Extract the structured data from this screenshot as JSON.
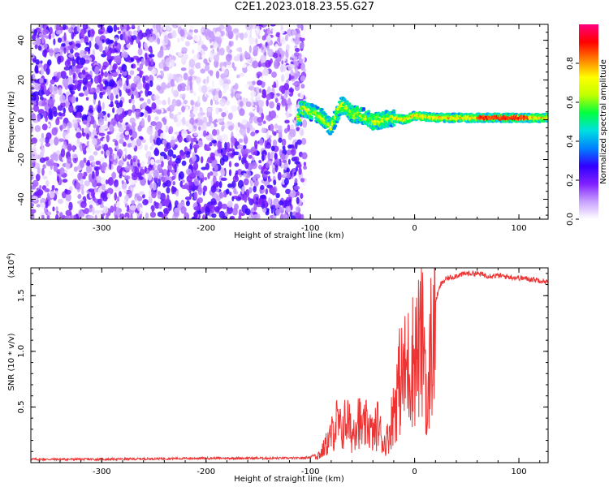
{
  "title": "C2E1.2023.018.23.55.G27",
  "chart_data": [
    {
      "type": "heatmap",
      "xlabel": "Height of straight line (km)",
      "ylabel": "Frequency (Hz)",
      "xlim": [
        -368,
        128
      ],
      "ylim": [
        -50,
        48
      ],
      "x_ticks": [
        -300,
        -200,
        -100,
        0,
        100
      ],
      "x_tick_labels": [
        "-300",
        "-200",
        "-100",
        "0",
        "100"
      ],
      "y_ticks": [
        -40,
        -20,
        0,
        20,
        40
      ],
      "y_tick_labels": [
        "-40",
        "-20",
        "0",
        "20",
        "40"
      ],
      "colorbar": {
        "label": "Normalized spectral amplitude",
        "range": [
          0,
          1
        ],
        "ticks": [
          0.0,
          0.2,
          0.4,
          0.6,
          0.8
        ],
        "tick_labels": [
          "0.0",
          "0.2",
          "0.4",
          "0.6",
          "0.8"
        ],
        "colors": [
          "#ffffff",
          "#c8a0ff",
          "#8020ff",
          "#3000ff",
          "#0080ff",
          "#00e0e0",
          "#00ff40",
          "#c0ff00",
          "#ffff00",
          "#ff8000",
          "#ff0000",
          "#ff0080"
        ]
      },
      "features": {
        "noise_region_x": [
          -368,
          -105
        ],
        "carrier_trace": [
          {
            "x": -110,
            "y": 6
          },
          {
            "x": -100,
            "y": 4
          },
          {
            "x": -90,
            "y": 2
          },
          {
            "x": -80,
            "y": -4
          },
          {
            "x": -70,
            "y": 8
          },
          {
            "x": -60,
            "y": 3
          },
          {
            "x": -50,
            "y": 2
          },
          {
            "x": -40,
            "y": -1
          },
          {
            "x": -30,
            "y": 0
          },
          {
            "x": -20,
            "y": 1
          },
          {
            "x": -10,
            "y": 0
          },
          {
            "x": 0,
            "y": 2
          },
          {
            "x": 20,
            "y": 1
          },
          {
            "x": 50,
            "y": 1
          },
          {
            "x": 80,
            "y": 1
          },
          {
            "x": 100,
            "y": 1
          },
          {
            "x": 128,
            "y": 1
          }
        ]
      },
      "grid": false
    },
    {
      "type": "line",
      "xlabel": "Height of straight line (km)",
      "ylabel": "SNR (10 * v/v)",
      "y_multiplier": "(x10",
      "y_multiplier_exp": "4",
      "y_multiplier_close": ")",
      "xlim": [
        -368,
        128
      ],
      "ylim": [
        0,
        1.75
      ],
      "x_ticks": [
        -300,
        -200,
        -100,
        0,
        100
      ],
      "x_tick_labels": [
        "-300",
        "-200",
        "-100",
        "0",
        "100"
      ],
      "y_ticks": [
        0.5,
        1.0,
        1.5
      ],
      "y_tick_labels": [
        "0.5",
        "1.0",
        "1.5"
      ],
      "color": "#ee3333",
      "series": [
        {
          "x": [
            -368,
            -300,
            -200,
            -150,
            -110,
            -100,
            -90,
            -85,
            -80,
            -75,
            -70,
            -65,
            -60,
            -55,
            -50,
            -45,
            -40,
            -35,
            -30,
            -25,
            -20,
            -15,
            -10,
            -5,
            0,
            5,
            10,
            12,
            15,
            20,
            25,
            30,
            40,
            50,
            60,
            70,
            80,
            90,
            100,
            110,
            120,
            128
          ],
          "y": [
            0.03,
            0.03,
            0.04,
            0.04,
            0.04,
            0.05,
            0.1,
            0.2,
            0.3,
            0.45,
            0.35,
            0.5,
            0.3,
            0.55,
            0.35,
            0.45,
            0.3,
            0.45,
            0.2,
            0.3,
            0.6,
            0.9,
            1.0,
            1.1,
            1.2,
            1.3,
            1.35,
            0.3,
            1.3,
            1.45,
            1.6,
            1.65,
            1.68,
            1.7,
            1.7,
            1.68,
            1.68,
            1.67,
            1.66,
            1.65,
            1.64,
            1.62
          ]
        }
      ],
      "grid": false
    }
  ]
}
